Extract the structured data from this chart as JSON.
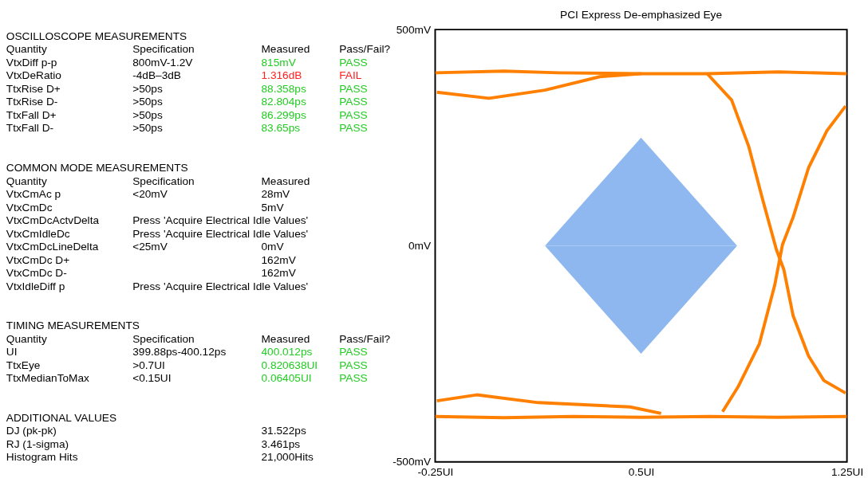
{
  "chart_data": [
    {
      "type": "other",
      "annotations": [
        "OSCILLOSCOPE MEASUREMENTS",
        "Quantity\tSpecification\tMeasured\tPass/Fail?",
        "VtxDiff p-p\t800mV-1.2V\t815mV\tPASS",
        "VtxDeRatio\t-4dB–3dB\t1.316dB\tFAIL",
        "TtxRise D+\t>50ps\t88.358ps\tPASS",
        "TtxRise D-\t>50ps\t82.804ps\tPASS",
        "TtxFall D+\t>50ps\t86.299ps\tPASS",
        "TtxFall D-\t>50ps\t83.65ps\tPASS",
        "COMMON MODE MEASUREMENTS",
        "Quantity\tSpecification\tMeasured",
        "VtxCmAc p\t<20mV\t28mV",
        "VtxCmDc\t\t5mV",
        "VtxCmDcActvDelta\tPress 'Acquire Electrical Idle Values'",
        "VtxCmIdleDc\tPress 'Acquire Electrical Idle Values'",
        "VtxCmDcLineDelta\t<25mV\t0mV",
        "VtxCmDc D+\t\t162mV",
        "VtxCmDc D-\t\t162mV",
        "VtxIdleDiff p\tPress 'Acquire Electrical Idle Values'",
        "TIMING MEASUREMENTS",
        "Quantity\tSpecification\tMeasured\tPass/Fail?",
        "UI\t399.88ps-400.12ps\t400.012ps\tPASS",
        "TtxEye\t>0.7UI\t0.820638UI\tPASS",
        "TtxMedianToMax\t<0.15UI\t0.06405UI\tPASS",
        "ADDITIONAL VALUES",
        "DJ (pk-pk)\t\t31.522ps",
        "RJ (1-sigma)\t\t3.461ps",
        "Histogram Hits\t\t21,000Hits"
      ],
      "colors": [
        null,
        null,
        "#22cc22",
        "#ff2020",
        "#22cc22",
        "#22cc22",
        "#22cc22",
        "#22cc22",
        null,
        null,
        null,
        null,
        null,
        null,
        null,
        null,
        null,
        null,
        null,
        null,
        "#22cc22",
        "#22cc22",
        "#22cc22",
        null,
        null,
        null,
        null
      ]
    },
    {
      "type": "line",
      "title": "PCI Express De-emphasized Eye",
      "xlim": [
        -0.25,
        1.25
      ],
      "xticks": [
        {
          "value": -0.25,
          "label": "-0.25UI"
        },
        {
          "value": 0.5,
          "label": "0.5UI"
        },
        {
          "value": 1.25,
          "label": "1.25UI"
        }
      ],
      "ylim": [
        -500,
        500
      ],
      "yticks": [
        {
          "value": -500,
          "label": "-500mV"
        },
        {
          "value": 0,
          "label": "0mV"
        },
        {
          "value": 500,
          "label": "500mV"
        }
      ],
      "grid": false,
      "marker": "none",
      "line_style": "solid",
      "series": [
        {
          "type": "line",
          "color": "#ff8000",
          "x": [
            -0.25,
            0.0,
            0.2,
            0.5,
            0.74,
            1.0,
            1.25
          ],
          "values": [
            400,
            404,
            400,
            398,
            398,
            402,
            398
          ]
        },
        {
          "type": "line",
          "color": "#ff8000",
          "x": [
            -0.244,
            -0.054,
            0.15,
            0.35,
            0.5
          ],
          "values": [
            355,
            341,
            360,
            391,
            398
          ]
        },
        {
          "type": "line",
          "color": "#ff8000",
          "x": [
            0.741,
            0.83,
            0.892,
            0.942,
            0.993,
            1.02,
            1.054,
            1.11,
            1.166,
            1.245
          ],
          "values": [
            398,
            337,
            230,
            109,
            -9,
            -55,
            -162,
            -255,
            -312,
            -341
          ]
        },
        {
          "type": "line",
          "color": "#ff8000",
          "x": [
            0.797,
            0.853,
            0.931,
            0.987,
            1.015,
            1.054,
            1.11,
            1.177,
            1.245
          ],
          "values": [
            -384,
            -327,
            -227,
            -91,
            2,
            66,
            180,
            266,
            323
          ]
        },
        {
          "type": "line",
          "color": "#ff8000",
          "x": [
            -0.25,
            0.0,
            0.25,
            0.5,
            0.75,
            1.0,
            1.25
          ],
          "values": [
            -395,
            -398,
            -395,
            -397,
            -395,
            -397,
            -395
          ]
        },
        {
          "type": "line",
          "color": "#ff8000",
          "x": [
            -0.244,
            -0.099,
            0.125,
            0.46,
            0.573
          ],
          "values": [
            -359,
            -345,
            -363,
            -373,
            -388
          ]
        },
        {
          "type": "area",
          "color": "#8fb8f0",
          "x": [
            0.15,
            0.5,
            0.85
          ],
          "values": [
            0,
            250,
            0
          ]
        },
        {
          "type": "area",
          "color": "#8eb7ef",
          "x": [
            0.15,
            0.5,
            0.85
          ],
          "values": [
            0,
            -250,
            0
          ]
        }
      ]
    }
  ]
}
